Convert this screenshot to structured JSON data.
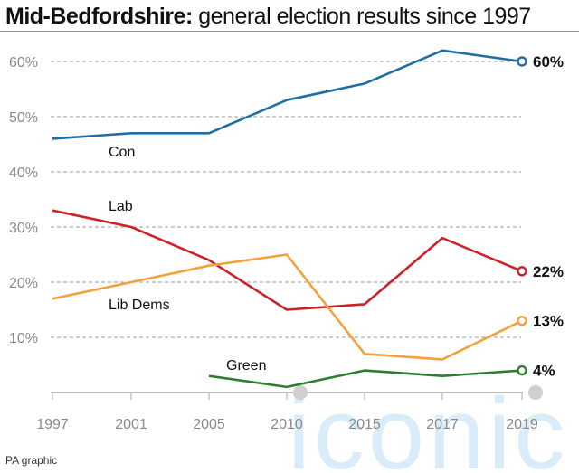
{
  "title_bold": "Mid-Bedfordshire:",
  "title_rest": " general election results since 1997",
  "credit": "PA graphic",
  "watermark": "iconic",
  "chart_data": {
    "type": "line",
    "x": [
      1997,
      2001,
      2005,
      2010,
      2015,
      2017,
      2019
    ],
    "x_tick_labels": [
      "1997",
      "2001",
      "2005",
      "2010",
      "2015",
      "2017",
      "2019"
    ],
    "y_tick_labels": [
      "60%",
      "50%",
      "40%",
      "30%",
      "20%",
      "10%"
    ],
    "y_ticks": [
      60,
      50,
      40,
      30,
      20,
      10
    ],
    "ylim": [
      0,
      65
    ],
    "grid": "horizontal dashed",
    "series": [
      {
        "name": "Con",
        "color": "#1f6fa3",
        "x": [
          1997,
          2001,
          2005,
          2010,
          2015,
          2017,
          2019
        ],
        "values": [
          46,
          47,
          47,
          53,
          56,
          62,
          60
        ],
        "end_label": "60%"
      },
      {
        "name": "Lab",
        "color": "#cc2229",
        "x": [
          1997,
          2001,
          2005,
          2010,
          2015,
          2017,
          2019
        ],
        "values": [
          33,
          30,
          24,
          15,
          16,
          28,
          22
        ],
        "end_label": "22%"
      },
      {
        "name": "Lib Dems",
        "color": "#f2a23c",
        "x": [
          1997,
          2001,
          2005,
          2010,
          2015,
          2017,
          2019
        ],
        "values": [
          17,
          20,
          23,
          25,
          7,
          6,
          13
        ],
        "end_label": "13%"
      },
      {
        "name": "Green",
        "color": "#2e7d32",
        "x": [
          2005,
          2010,
          2015,
          2017,
          2019
        ],
        "values": [
          3,
          1,
          4,
          3,
          4
        ],
        "end_label": "4%"
      }
    ]
  }
}
